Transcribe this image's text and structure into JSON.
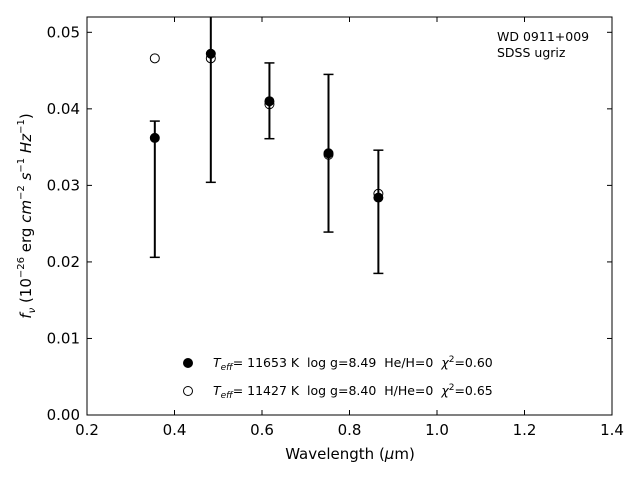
{
  "chart_data": {
    "type": "scatter",
    "title": "",
    "xlabel": "Wavelength (μm)",
    "ylabel": "fν (10⁻²⁶ erg cm⁻² s⁻¹ Hz⁻¹)",
    "xlim": [
      0.2,
      1.4
    ],
    "ylim": [
      0.0,
      0.052
    ],
    "xticks": [
      0.2,
      0.4,
      0.6,
      0.8,
      1.0,
      1.2,
      1.4
    ],
    "xtick_labels": [
      "0.2",
      "0.4",
      "0.6",
      "0.8",
      "1.0",
      "1.2",
      "1.4"
    ],
    "yticks": [
      0.0,
      0.01,
      0.02,
      0.03,
      0.04,
      0.05
    ],
    "ytick_labels": [
      "0.00",
      "0.01",
      "0.02",
      "0.03",
      "0.04",
      "0.05"
    ],
    "grid": false,
    "annotation": [
      "WD 0911+009",
      "SDSS ugriz"
    ],
    "observed": {
      "x": [
        0.355,
        0.483,
        0.617,
        0.752,
        0.866
      ],
      "y": [
        0.0362,
        0.047,
        0.041,
        0.034,
        0.0285
      ],
      "err_low": [
        0.0206,
        0.0304,
        0.0361,
        0.0239,
        0.0185
      ],
      "err_high": [
        0.0384,
        0.0565,
        0.046,
        0.0445,
        0.0346
      ]
    },
    "series": [
      {
        "name": "Teff= 11653 K  log g=8.49  He/H=0  χ²=0.60",
        "marker": "filled-circle",
        "x": [
          0.355,
          0.483,
          0.617,
          0.752,
          0.866
        ],
        "y": [
          0.0362,
          0.0472,
          0.041,
          0.0342,
          0.0284
        ]
      },
      {
        "name": "Teff= 11427 K  log g=8.40  H/He=0  χ²=0.65",
        "marker": "open-circle",
        "x": [
          0.355,
          0.483,
          0.617,
          0.752,
          0.866
        ],
        "y": [
          0.0466,
          0.0466,
          0.0406,
          0.034,
          0.0289
        ]
      }
    ],
    "legend": {
      "placement": "bottom-center",
      "entries": [
        {
          "teff_value": "= 11653 K  log g=8.49  He/H=0  ",
          "chi_value": "=0.60"
        },
        {
          "teff_value": "= 11427 K  log g=8.40  H/He=0  ",
          "chi_value": "=0.65"
        }
      ]
    },
    "colors": {
      "marker": "#000000",
      "axis": "#000000"
    }
  }
}
